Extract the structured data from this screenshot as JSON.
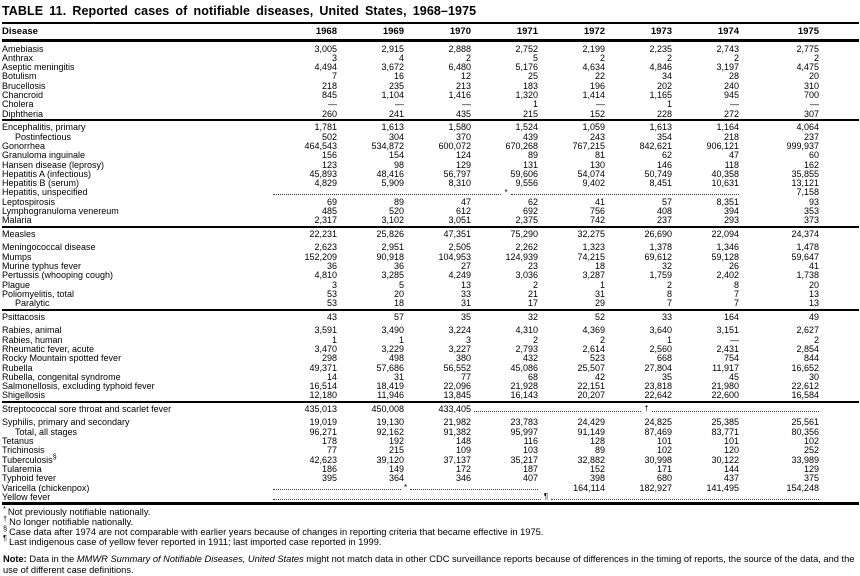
{
  "title": "TABLE 11. Reported cases of notifiable diseases, United States, 1968–1975",
  "table": {
    "disease_header": "Disease",
    "year_headers": [
      "1968",
      "1969",
      "1970",
      "1971",
      "1972",
      "1973",
      "1974",
      "1975"
    ],
    "groups": [
      {
        "rows": [
          {
            "disease": "Amebiasis",
            "cells": [
              "3,005",
              "2,915",
              "2,888",
              "2,752",
              "2,199",
              "2,235",
              "2,743",
              "2,775"
            ]
          },
          {
            "disease": "Anthrax",
            "cells": [
              "3",
              "4",
              "2",
              "5",
              "2",
              "2",
              "2",
              "2"
            ]
          },
          {
            "disease": "Aseptic meningitis",
            "cells": [
              "4,494",
              "3,672",
              "6,480",
              "5,176",
              "4,634",
              "4,846",
              "3,197",
              "4,475"
            ]
          },
          {
            "disease": "Botulism",
            "cells": [
              "7",
              "16",
              "12",
              "25",
              "22",
              "34",
              "28",
              "20"
            ]
          },
          {
            "disease": "Brucellosis",
            "cells": [
              "218",
              "235",
              "213",
              "183",
              "196",
              "202",
              "240",
              "310"
            ]
          },
          {
            "disease": "Chancroid",
            "cells": [
              "845",
              "1,104",
              "1,416",
              "1,320",
              "1,414",
              "1,165",
              "945",
              "700"
            ]
          },
          {
            "disease": "Cholera",
            "cells": [
              "—",
              "—",
              "—",
              "1",
              "—",
              "1",
              "—",
              "—"
            ]
          },
          {
            "disease": "Diphtheria",
            "cells": [
              "260",
              "241",
              "435",
              "215",
              "152",
              "228",
              "272",
              "307"
            ]
          }
        ]
      },
      {
        "rows": [
          {
            "disease": "Encephalitis, primary",
            "cells": [
              "1,781",
              "1,613",
              "1,580",
              "1,524",
              "1,059",
              "1,613",
              "1,164",
              "4,064"
            ]
          },
          {
            "disease": "Postinfectious",
            "indent": true,
            "cells": [
              "502",
              "304",
              "370",
              "439",
              "243",
              "354",
              "218",
              "237"
            ]
          },
          {
            "disease": "Gonorrhea",
            "cells": [
              "464,543",
              "534,872",
              "600,072",
              "670,268",
              "767,215",
              "842,621",
              "906,121",
              "999,937"
            ]
          },
          {
            "disease": "Granuloma inguinale",
            "cells": [
              "156",
              "154",
              "124",
              "89",
              "81",
              "62",
              "47",
              "60"
            ]
          },
          {
            "disease": "Hansen disease (leprosy)",
            "cells": [
              "123",
              "98",
              "129",
              "131",
              "130",
              "146",
              "118",
              "162"
            ]
          },
          {
            "disease": "Hepatitis A (infectious)",
            "cells": [
              "45,893",
              "48,416",
              "56,797",
              "59,606",
              "54,074",
              "50,749",
              "40,358",
              "35,855"
            ]
          },
          {
            "disease": "Hepatitis B (serum)",
            "cells": [
              "4,829",
              "5,909",
              "8,310",
              "9,556",
              "9,402",
              "8,451",
              "10,631",
              "13,121"
            ]
          },
          {
            "disease": "Hepatitis, unspecified",
            "cells": [
              {
                "dots": 7,
                "sym": "*"
              },
              "7,158"
            ]
          },
          {
            "disease": "Leptospirosis",
            "cells": [
              "69",
              "89",
              "47",
              "62",
              "41",
              "57",
              "8,351",
              "93"
            ]
          },
          {
            "disease": "Lymphogranuloma venereum",
            "cells": [
              "485",
              "520",
              "612",
              "692",
              "756",
              "408",
              "394",
              "353"
            ]
          },
          {
            "disease": "Malaria",
            "cells": [
              "2,317",
              "3,102",
              "3,051",
              "2,375",
              "742",
              "237",
              "293",
              "373"
            ]
          }
        ]
      },
      {
        "rows": [
          {
            "disease": "Measles",
            "cells": [
              "22,231",
              "25,826",
              "47,351",
              "75,290",
              "32,275",
              "26,690",
              "22,094",
              "24,374"
            ]
          },
          {
            "disease": "Meningococcal disease",
            "gap": true,
            "cells": [
              "2,623",
              "2,951",
              "2,505",
              "2,262",
              "1,323",
              "1,378",
              "1,346",
              "1,478"
            ]
          },
          {
            "disease": "Mumps",
            "cells": [
              "152,209",
              "90,918",
              "104,953",
              "124,939",
              "74,215",
              "69,612",
              "59,128",
              "59,647"
            ]
          },
          {
            "disease": "Murine typhus fever",
            "cells": [
              "36",
              "36",
              "27",
              "23",
              "18",
              "32",
              "26",
              "41"
            ]
          },
          {
            "disease": "Pertussis (whooping cough)",
            "cells": [
              "4,810",
              "3,285",
              "4,249",
              "3,036",
              "3,287",
              "1,759",
              "2,402",
              "1,738"
            ]
          },
          {
            "disease": "Plague",
            "cells": [
              "3",
              "5",
              "13",
              "2",
              "1",
              "2",
              "8",
              "20"
            ]
          },
          {
            "disease": "Poliomyelitis, total",
            "cells": [
              "53",
              "20",
              "33",
              "21",
              "31",
              "8",
              "7",
              "13"
            ]
          },
          {
            "disease": "Paralytic",
            "indent": true,
            "cells": [
              "53",
              "18",
              "31",
              "17",
              "29",
              "7",
              "7",
              "13"
            ]
          }
        ]
      },
      {
        "rows": [
          {
            "disease": "Psittacosis",
            "cells": [
              "43",
              "57",
              "35",
              "32",
              "52",
              "33",
              "164",
              "49"
            ]
          },
          {
            "disease": "Rabies, animal",
            "gap": true,
            "cells": [
              "3,591",
              "3,490",
              "3,224",
              "4,310",
              "4,369",
              "3,640",
              "3,151",
              "2,627"
            ]
          },
          {
            "disease": "Rabies, human",
            "cells": [
              "1",
              "1",
              "3",
              "2",
              "2",
              "1",
              "—",
              "2"
            ]
          },
          {
            "disease": "Rheumatic fever, acute",
            "cells": [
              "3,470",
              "3,229",
              "3,227",
              "2,793",
              "2,614",
              "2,560",
              "2,431",
              "2,854"
            ]
          },
          {
            "disease": "Rocky Mountain spotted fever",
            "cells": [
              "298",
              "498",
              "380",
              "432",
              "523",
              "668",
              "754",
              "844"
            ]
          },
          {
            "disease": "Rubella",
            "cells": [
              "49,371",
              "57,686",
              "56,552",
              "45,086",
              "25,507",
              "27,804",
              "11,917",
              "16,652"
            ]
          },
          {
            "disease": "Rubella, congenital syndrome",
            "cells": [
              "14",
              "31",
              "77",
              "68",
              "42",
              "35",
              "45",
              "30"
            ]
          },
          {
            "disease": "Salmonellosis, excluding typhoid fever",
            "cells": [
              "16,514",
              "18,419",
              "22,096",
              "21,928",
              "22,151",
              "23,818",
              "21,980",
              "22,612"
            ]
          },
          {
            "disease": "Shigellosis",
            "cells": [
              "12,180",
              "11,946",
              "13,845",
              "16,143",
              "20,207",
              "22,642",
              "22,600",
              "16,584"
            ]
          }
        ]
      },
      {
        "rows": [
          {
            "disease": "Streptococcal sore throat and scarlet fever",
            "cells": [
              "435,013",
              "450,008",
              "433,405",
              {
                "dots": 5,
                "sym": "†"
              }
            ]
          },
          {
            "disease": "Syphilis, primary and secondary",
            "gap": true,
            "cells": [
              "19,019",
              "19,130",
              "21,982",
              "23,783",
              "24,429",
              "24,825",
              "25,385",
              "25,561"
            ]
          },
          {
            "disease": "Total, all stages",
            "indent": true,
            "cells": [
              "96,271",
              "92,162",
              "91,382",
              "95,997",
              "91,149",
              "87,469",
              "83,771",
              "80,356"
            ]
          },
          {
            "disease": "Tetanus",
            "cells": [
              "178",
              "192",
              "148",
              "116",
              "128",
              "101",
              "101",
              "102"
            ]
          },
          {
            "disease": "Trichinosis",
            "cells": [
              "77",
              "215",
              "109",
              "103",
              "89",
              "102",
              "120",
              "252"
            ]
          },
          {
            "disease": "Tuberculosis",
            "sup": "§",
            "cells": [
              "42,623",
              "39,120",
              "37,137",
              "35,217",
              "32,882",
              "30,998",
              "30,122",
              "33,989"
            ]
          },
          {
            "disease": "Tularemia",
            "cells": [
              "186",
              "149",
              "172",
              "187",
              "152",
              "171",
              "144",
              "129"
            ]
          },
          {
            "disease": "Typhoid fever",
            "cells": [
              "395",
              "364",
              "346",
              "407",
              "398",
              "680",
              "437",
              "375"
            ]
          },
          {
            "disease": "Varicella (chickenpox)",
            "cells": [
              {
                "dots": 4,
                "sym": "*"
              },
              "164,114",
              "182,927",
              "141,495",
              "154,248"
            ]
          },
          {
            "disease": "Yellow fever",
            "cells": [
              {
                "dots": 8,
                "sym": "¶"
              }
            ]
          }
        ]
      }
    ]
  },
  "footnotes": [
    {
      "sym": "*",
      "text": "Not previously notifiable nationally."
    },
    {
      "sym": "†",
      "text": "No longer notifiable nationally."
    },
    {
      "sym": "§",
      "text": "Case data after 1974 are not comparable with earlier years because of changes in reporting criteria that became effective in 1975."
    },
    {
      "sym": "¶",
      "text": "Last indigenous case of yellow fever reported in 1911; last imported case reported in 1999."
    }
  ],
  "note": {
    "label": "Note:",
    "pre": " Data in the ",
    "italic": "MMWR Summary of Notifiable Diseases, United States",
    "post": " might not match data in other CDC surveillance reports because of differences in the timing of reports, the source of the data, and the use of different case definitions."
  }
}
